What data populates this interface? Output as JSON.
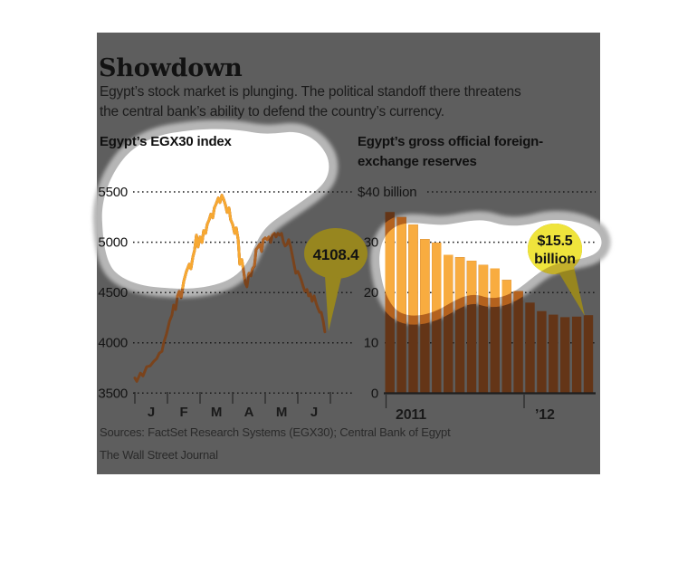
{
  "panel": {
    "title": "Showdown",
    "subtitle_line1": "Egypt’s stock market is plunging. The political standoff there threatens",
    "subtitle_line2": "the central bank’s ability to defend the country’s currency.",
    "source_line": "Sources: FactSet Research Systems (EGX30); Central Bank of Egypt",
    "credit_line": "The Wall Street Journal"
  },
  "colors": {
    "page_bg": "#ffffff",
    "panel_bg": "#5e5e5e",
    "blob_white": "#ffffff",
    "blob_halo": "#b6b6b6",
    "line_dark": "#7a431c",
    "line_mid": "#b06426",
    "line_bright": "#f7a832",
    "bar_dark": "#643517",
    "bar_mid": "#b4621e",
    "bar_bright": "#f8ac40",
    "balloon_dark": "#97861f",
    "balloon_mid": "#c3b02c",
    "balloon_bright": "#efe43c",
    "grid": "#1a1a1a"
  },
  "chart_data": [
    {
      "type": "line",
      "title": "Egypt’s EGX30 index",
      "x_axis": {
        "categories": [
          "J",
          "F",
          "M",
          "A",
          "M",
          "J"
        ],
        "unit": "months Jan–Jun 2012"
      },
      "y_axis": {
        "ticks": [
          3500,
          4000,
          4500,
          5000,
          5500
        ],
        "range": [
          3500,
          5500
        ],
        "grid": "dotted"
      },
      "callout": {
        "label": "4108.4",
        "value": 4108.4
      },
      "series": [
        {
          "name": "EGX30 index",
          "points": [
            [
              0,
              3650
            ],
            [
              0.06,
              3617
            ],
            [
              0.17,
              3699
            ],
            [
              0.25,
              3671
            ],
            [
              0.36,
              3762
            ],
            [
              0.47,
              3771
            ],
            [
              0.58,
              3816
            ],
            [
              0.67,
              3843
            ],
            [
              0.75,
              3897
            ],
            [
              0.83,
              3915
            ],
            [
              0.89,
              4005
            ],
            [
              0.97,
              4087
            ],
            [
              1.06,
              4213
            ],
            [
              1.14,
              4276
            ],
            [
              1.19,
              4375
            ],
            [
              1.25,
              4330
            ],
            [
              1.31,
              4466
            ],
            [
              1.36,
              4511
            ],
            [
              1.42,
              4448
            ],
            [
              1.5,
              4610
            ],
            [
              1.58,
              4709
            ],
            [
              1.67,
              4782
            ],
            [
              1.72,
              4736
            ],
            [
              1.78,
              4854
            ],
            [
              1.83,
              4917
            ],
            [
              1.89,
              5070
            ],
            [
              1.94,
              4953
            ],
            [
              2.0,
              5052
            ],
            [
              2.06,
              4998
            ],
            [
              2.11,
              5115
            ],
            [
              2.17,
              5088
            ],
            [
              2.22,
              5178
            ],
            [
              2.28,
              5224
            ],
            [
              2.33,
              5278
            ],
            [
              2.39,
              5242
            ],
            [
              2.44,
              5341
            ],
            [
              2.5,
              5386
            ],
            [
              2.56,
              5440
            ],
            [
              2.61,
              5395
            ],
            [
              2.67,
              5467
            ],
            [
              2.72,
              5431
            ],
            [
              2.78,
              5368
            ],
            [
              2.83,
              5296
            ],
            [
              2.89,
              5341
            ],
            [
              2.94,
              5224
            ],
            [
              3.0,
              5178
            ],
            [
              3.06,
              5088
            ],
            [
              3.11,
              5142
            ],
            [
              3.17,
              5025
            ],
            [
              3.22,
              4781
            ],
            [
              3.28,
              4827
            ],
            [
              3.33,
              4727
            ],
            [
              3.39,
              4592
            ],
            [
              3.44,
              4556
            ],
            [
              3.5,
              4691
            ],
            [
              3.56,
              4664
            ],
            [
              3.61,
              4736
            ],
            [
              3.67,
              4764
            ],
            [
              3.72,
              4926
            ],
            [
              3.78,
              4953
            ],
            [
              3.83,
              4980
            ],
            [
              3.89,
              4908
            ],
            [
              3.94,
              5025
            ],
            [
              4.0,
              5043
            ],
            [
              4.06,
              5025
            ],
            [
              4.11,
              5052
            ],
            [
              4.17,
              4998
            ],
            [
              4.22,
              5070
            ],
            [
              4.28,
              5088
            ],
            [
              4.33,
              5052
            ],
            [
              4.39,
              5088
            ],
            [
              4.44,
              5070
            ],
            [
              4.5,
              5088
            ],
            [
              4.56,
              4998
            ],
            [
              4.61,
              4962
            ],
            [
              4.67,
              4980
            ],
            [
              4.72,
              5025
            ],
            [
              4.78,
              4953
            ],
            [
              4.83,
              4872
            ],
            [
              4.89,
              4772
            ],
            [
              4.94,
              4691
            ],
            [
              5.0,
              4709
            ],
            [
              5.06,
              4664
            ],
            [
              5.11,
              4619
            ],
            [
              5.17,
              4556
            ],
            [
              5.22,
              4511
            ],
            [
              5.28,
              4529
            ],
            [
              5.33,
              4466
            ],
            [
              5.39,
              4484
            ],
            [
              5.44,
              4412
            ],
            [
              5.5,
              4466
            ],
            [
              5.56,
              4394
            ],
            [
              5.61,
              4348
            ],
            [
              5.67,
              4303
            ],
            [
              5.72,
              4303
            ],
            [
              5.78,
              4213
            ],
            [
              5.81,
              4150
            ],
            [
              5.83,
              4108.4
            ]
          ]
        }
      ]
    },
    {
      "type": "bar",
      "title": "Egypt’s gross official foreign-exchange reserves",
      "title_lines": [
        "Egypt’s gross official foreign-",
        "exchange reserves"
      ],
      "x_axis": {
        "labels": [
          "2011",
          "’12"
        ],
        "unit": "months Jan 2011–Jun 2012"
      },
      "y_axis": {
        "top_label": "$40 billion",
        "ticks": [
          0,
          10,
          20,
          30,
          40
        ],
        "range": [
          0,
          40
        ],
        "grid": "dotted"
      },
      "callout": {
        "line1": "$15.5",
        "line2": "billion",
        "value": 15.5
      },
      "values": [
        36,
        35,
        33.5,
        30.6,
        29.9,
        27.5,
        27,
        26.3,
        25.5,
        24.8,
        22.5,
        20.3,
        18,
        16.3,
        15.6,
        15.1,
        15.2,
        15.5
      ]
    }
  ]
}
